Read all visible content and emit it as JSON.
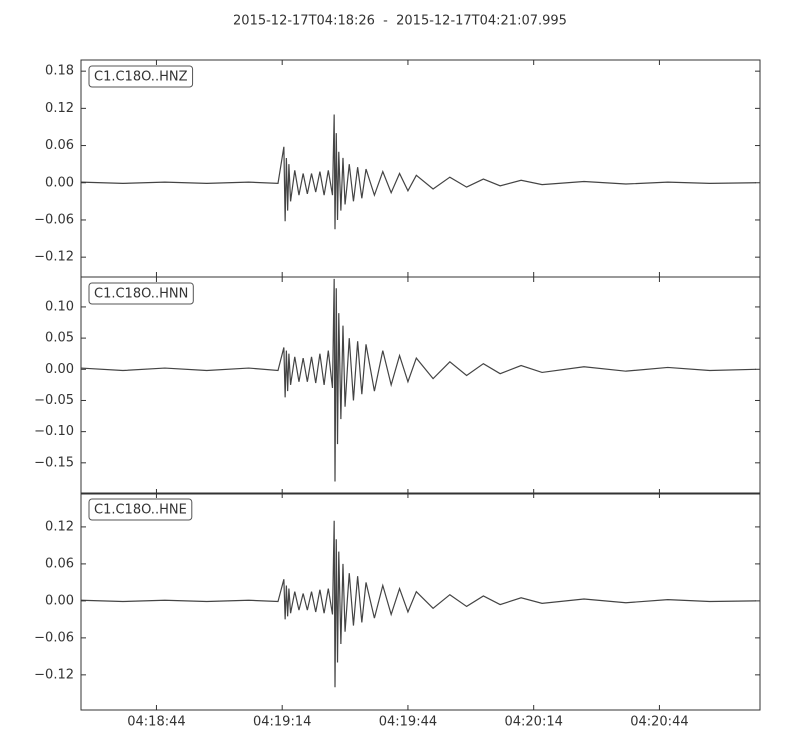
{
  "title": "2015-12-17T04:18:26  -  2015-12-17T04:21:07.995",
  "chart_data": [
    {
      "type": "line",
      "x": [
        0,
        10,
        20,
        30,
        40,
        47,
        48.4,
        48.7,
        49.0,
        49.3,
        49.6,
        50,
        51,
        52,
        53,
        54,
        55,
        56,
        57,
        58,
        59,
        60,
        60.4,
        60.6,
        60.9,
        61.2,
        61.5,
        62,
        62.5,
        63,
        64,
        65,
        66,
        67,
        68,
        70,
        72,
        74,
        76,
        78,
        80,
        84,
        88,
        92,
        96,
        100,
        105,
        110,
        120,
        130,
        140,
        150,
        161
      ],
      "series": [
        {
          "name": "C1.C18O..HNZ",
          "color": "#444444",
          "values": [
            0.001,
            -0.001,
            0.001,
            -0.001,
            0.001,
            -0.001,
            0.058,
            -0.062,
            0.04,
            -0.045,
            0.03,
            -0.03,
            0.02,
            -0.02,
            0.015,
            -0.018,
            0.015,
            -0.015,
            0.018,
            -0.02,
            0.02,
            -0.02,
            0.11,
            -0.075,
            0.08,
            -0.06,
            0.05,
            -0.045,
            0.04,
            -0.035,
            0.03,
            -0.03,
            0.025,
            -0.025,
            0.022,
            -0.02,
            0.018,
            -0.016,
            0.015,
            -0.013,
            0.012,
            -0.01,
            0.009,
            -0.007,
            0.006,
            -0.005,
            0.004,
            -0.003,
            0.002,
            -0.002,
            0.001,
            -0.001,
            0
          ]
        }
      ],
      "xlim": [
        0,
        161.995
      ],
      "ylim": [
        -0.152,
        0.198
      ],
      "yticks": [
        {
          "value": -0.12,
          "label": "−0.12"
        },
        {
          "value": -0.06,
          "label": "−0.06"
        },
        {
          "value": 0,
          "label": "0.00"
        },
        0.06,
        0.12,
        0.18
      ]
    },
    {
      "type": "line",
      "x": [
        0,
        10,
        20,
        30,
        40,
        47,
        48.4,
        48.7,
        49.0,
        49.3,
        49.6,
        50,
        51,
        52,
        53,
        54,
        55,
        56,
        57,
        58,
        59,
        60,
        60.4,
        60.6,
        60.9,
        61.2,
        61.5,
        62,
        62.5,
        63,
        64,
        65,
        66,
        67,
        68,
        70,
        72,
        74,
        76,
        78,
        80,
        84,
        88,
        92,
        96,
        100,
        105,
        110,
        120,
        130,
        140,
        150,
        161
      ],
      "series": [
        {
          "name": "C1.C18O..HNN",
          "color": "#444444",
          "values": [
            0.002,
            -0.002,
            0.002,
            -0.002,
            0.002,
            -0.002,
            0.035,
            -0.045,
            0.03,
            -0.035,
            0.025,
            -0.025,
            0.02,
            -0.02,
            0.018,
            -0.02,
            0.02,
            -0.022,
            0.025,
            -0.025,
            0.03,
            -0.03,
            0.145,
            -0.18,
            0.13,
            -0.12,
            0.09,
            -0.08,
            0.07,
            -0.06,
            0.05,
            -0.05,
            0.045,
            -0.04,
            0.04,
            -0.035,
            0.03,
            -0.025,
            0.022,
            -0.02,
            0.018,
            -0.015,
            0.012,
            -0.01,
            0.009,
            -0.007,
            0.006,
            -0.005,
            0.004,
            -0.003,
            0.003,
            -0.002,
            0
          ]
        }
      ],
      "xlim": [
        0,
        161.995
      ],
      "ylim": [
        -0.2,
        0.148
      ],
      "yticks": [
        {
          "value": -0.15,
          "label": "−0.15"
        },
        {
          "value": -0.1,
          "label": "−0.10"
        },
        {
          "value": -0.05,
          "label": "−0.05"
        },
        {
          "value": 0,
          "label": "0.00"
        },
        0.05,
        {
          "value": 0.1,
          "label": "0.10"
        }
      ]
    },
    {
      "type": "line",
      "x": [
        0,
        10,
        20,
        30,
        40,
        47,
        48.4,
        48.7,
        49.0,
        49.3,
        49.6,
        50,
        51,
        52,
        53,
        54,
        55,
        56,
        57,
        58,
        59,
        60,
        60.4,
        60.6,
        60.9,
        61.2,
        61.5,
        62,
        62.5,
        63,
        64,
        65,
        66,
        67,
        68,
        70,
        72,
        74,
        76,
        78,
        80,
        84,
        88,
        92,
        96,
        100,
        105,
        110,
        120,
        130,
        140,
        150,
        161
      ],
      "series": [
        {
          "name": "C1.C18O..HNE",
          "color": "#444444",
          "values": [
            0.001,
            -0.001,
            0.001,
            -0.001,
            0.001,
            -0.001,
            0.035,
            -0.03,
            0.025,
            -0.025,
            0.02,
            -0.02,
            0.015,
            -0.015,
            0.012,
            -0.015,
            0.015,
            -0.018,
            0.018,
            -0.02,
            0.02,
            -0.022,
            0.13,
            -0.14,
            0.1,
            -0.1,
            0.08,
            -0.07,
            0.06,
            -0.05,
            0.045,
            -0.04,
            0.04,
            -0.035,
            0.03,
            -0.028,
            0.025,
            -0.022,
            0.02,
            -0.018,
            0.015,
            -0.012,
            0.01,
            -0.009,
            0.008,
            -0.006,
            0.005,
            -0.004,
            0.003,
            -0.003,
            0.002,
            -0.001,
            0
          ]
        }
      ],
      "xlim": [
        0,
        161.995
      ],
      "ylim": [
        -0.177,
        0.175
      ],
      "yticks": [
        {
          "value": -0.12,
          "label": "−0.12"
        },
        {
          "value": -0.06,
          "label": "−0.06"
        },
        {
          "value": 0,
          "label": "0.00"
        },
        0.06,
        0.12
      ],
      "xticks": [
        {
          "value": 18,
          "label": "04:18:44"
        },
        {
          "value": 48,
          "label": "04:19:14"
        },
        {
          "value": 78,
          "label": "04:19:44"
        },
        {
          "value": 108,
          "label": "04:20:14"
        },
        {
          "value": 138,
          "label": "04:20:44"
        }
      ]
    }
  ]
}
